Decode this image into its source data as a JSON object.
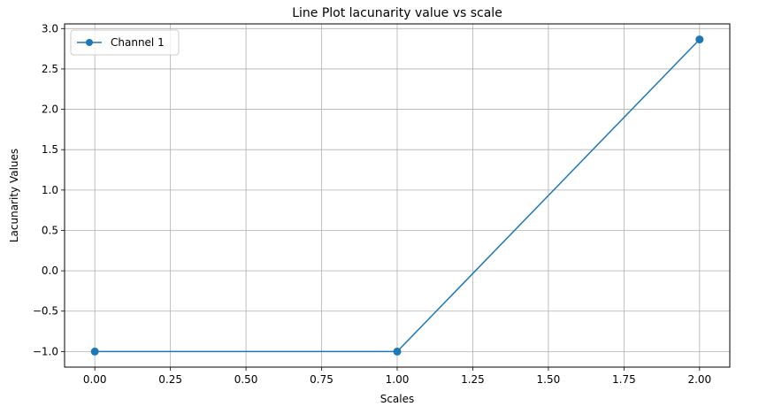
{
  "chart_data": {
    "type": "line",
    "title": "Line Plot lacunarity value vs scale",
    "xlabel": "Scales",
    "ylabel": "Lacunarity Values",
    "x": [
      0.0,
      1.0,
      2.0
    ],
    "series": [
      {
        "name": "Channel 1",
        "values": [
          -1.0,
          -1.0,
          2.865
        ],
        "color": "#1f77b4",
        "marker": "circle"
      }
    ],
    "xlim": [
      -0.1,
      2.1
    ],
    "ylim": [
      -1.193,
      3.058
    ],
    "xticks": [
      0.0,
      0.25,
      0.5,
      0.75,
      1.0,
      1.25,
      1.5,
      1.75,
      2.0
    ],
    "xtick_labels": [
      "0.00",
      "0.25",
      "0.50",
      "0.75",
      "1.00",
      "1.25",
      "1.50",
      "1.75",
      "2.00"
    ],
    "yticks": [
      -1.0,
      -0.5,
      0.0,
      0.5,
      1.0,
      1.5,
      2.0,
      2.5,
      3.0
    ],
    "ytick_labels": [
      "−1.0",
      "−0.5",
      "0.0",
      "0.5",
      "1.0",
      "1.5",
      "2.0",
      "2.5",
      "3.0"
    ],
    "grid": true,
    "legend_position": "top-left",
    "colors": {
      "grid": "#b0b0b0",
      "axes": "#000000"
    }
  }
}
